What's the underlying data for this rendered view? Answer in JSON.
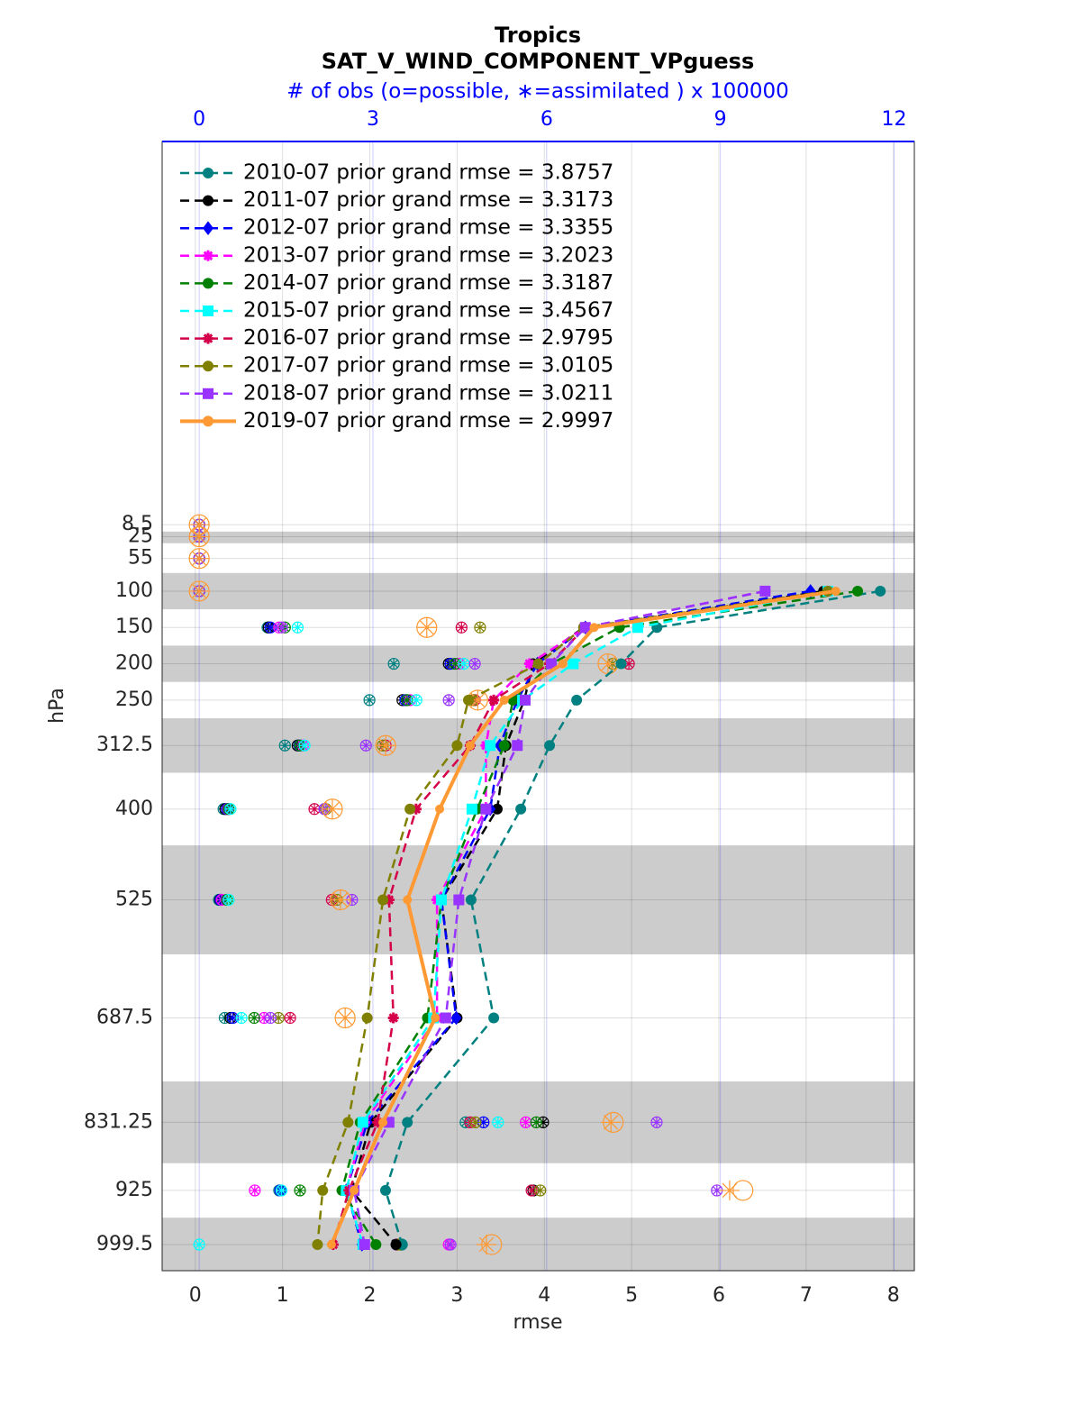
{
  "chart_data": {
    "type": "line",
    "title": "Tropics",
    "subtitle": "SAT_V_WIND_COMPONENT_VPguess",
    "xlabel": "rmse",
    "ylabel": "hPa",
    "x2label": "# of obs (o=possible, ∗=assimilated ) x 100000",
    "xlim": [
      -0.38,
      8.24
    ],
    "xticks": [
      0,
      1,
      2,
      3,
      4,
      5,
      6,
      7,
      8
    ],
    "x2lim": [
      -0.64,
      12.35
    ],
    "x2ticks": [
      0,
      3,
      6,
      9,
      12
    ],
    "ylim": [
      1035.5,
      -519
    ],
    "yticks": [
      8.5,
      25,
      55,
      100,
      150,
      200,
      250,
      312.5,
      400,
      525,
      687.5,
      831.25,
      925,
      999.5
    ],
    "y": [
      8.5,
      25,
      55,
      100,
      150,
      200,
      250,
      312.5,
      400,
      525,
      687.5,
      831.25,
      925,
      999.5
    ],
    "shaded_bands": [
      [
        18,
        34
      ],
      [
        75,
        125
      ],
      [
        175,
        225
      ],
      [
        275,
        350
      ],
      [
        450,
        600
      ],
      [
        775,
        887.5
      ],
      [
        962.5,
        1035.5
      ]
    ],
    "grid": true,
    "legend_position": "upper left",
    "series": [
      {
        "name": "2010-07 prior grand rmse = 3.8757",
        "color": "#008080",
        "marker": "circle",
        "line_style": "dashed",
        "values": [
          null,
          null,
          null,
          7.85,
          5.29,
          4.88,
          4.37,
          4.06,
          3.73,
          3.16,
          3.42,
          2.43,
          2.18,
          2.37
        ],
        "obs_possible": [
          0,
          0,
          0,
          0,
          1.18,
          3.36,
          2.94,
          1.48,
          0.42,
          0.34,
          0.44,
          4.6,
          1.38,
          3.5
        ],
        "obs_assimilated": [
          0,
          0,
          0,
          0,
          1.18,
          3.36,
          2.94,
          1.48,
          0.42,
          0.34,
          0.44,
          4.6,
          1.38,
          3.5
        ]
      },
      {
        "name": "2011-07 prior grand rmse = 3.3173",
        "color": "#000000",
        "marker": "hexagon",
        "line_style": "dashed",
        "values": [
          null,
          null,
          null,
          7.2,
          4.45,
          3.87,
          3.77,
          3.56,
          3.46,
          2.82,
          3.0,
          2.01,
          1.79,
          2.3
        ],
        "obs_possible": [
          0,
          0,
          0,
          0,
          1.2,
          4.31,
          3.51,
          1.7,
          0.45,
          0.36,
          0.54,
          5.94,
          5.77,
          3.41
        ],
        "obs_assimilated": [
          0,
          0,
          0,
          0,
          1.2,
          4.31,
          3.51,
          1.7,
          0.45,
          0.36,
          0.54,
          5.94,
          5.77,
          3.41
        ]
      },
      {
        "name": "2012-07 prior grand rmse = 3.3355",
        "color": "#0000ff",
        "marker": "diamond",
        "line_style": "dashed",
        "values": [
          null,
          null,
          null,
          7.05,
          4.47,
          3.92,
          3.69,
          3.49,
          3.38,
          2.82,
          2.99,
          1.97,
          1.73,
          1.91
        ],
        "obs_possible": [
          0,
          0,
          0,
          0,
          1.23,
          4.34,
          3.56,
          1.73,
          0.48,
          0.37,
          0.58,
          4.91,
          1.4,
          3.41
        ],
        "obs_assimilated": [
          0,
          0,
          0,
          0,
          1.23,
          4.34,
          3.56,
          1.73,
          0.48,
          0.37,
          0.58,
          4.91,
          1.4,
          3.41
        ]
      },
      {
        "name": "2013-07 prior grand rmse = 3.2023",
        "color": "#ff00ff",
        "marker": "asterisk",
        "line_style": "dashed",
        "values": [
          null,
          null,
          null,
          6.53,
          4.47,
          3.83,
          3.42,
          3.33,
          3.33,
          2.77,
          2.77,
          1.94,
          1.73,
          1.94
        ],
        "obs_possible": [
          0,
          0,
          0,
          0,
          1.38,
          4.49,
          3.64,
          1.79,
          0.5,
          0.39,
          1.12,
          5.64,
          0.96,
          4.31
        ],
        "obs_assimilated": [
          0,
          0,
          0,
          0,
          1.38,
          4.49,
          3.64,
          1.79,
          0.5,
          0.39,
          1.12,
          5.64,
          0.96,
          4.31
        ]
      },
      {
        "name": "2014-07 prior grand rmse = 3.3187",
        "color": "#008000",
        "marker": "hexagon",
        "line_style": "dashed",
        "values": [
          null,
          null,
          null,
          7.59,
          4.86,
          4.08,
          3.64,
          3.54,
          3.23,
          2.82,
          2.66,
          1.89,
          1.68,
          2.07
        ],
        "obs_possible": [
          0,
          0,
          0,
          0,
          1.48,
          4.42,
          3.59,
          1.74,
          0.51,
          0.48,
          0.95,
          5.82,
          1.74,
          3.47
        ],
        "obs_assimilated": [
          0,
          0,
          0,
          0,
          1.48,
          4.42,
          3.59,
          1.74,
          0.51,
          0.48,
          0.95,
          5.82,
          1.74,
          3.47
        ]
      },
      {
        "name": "2015-07 prior grand rmse = 3.4567",
        "color": "#00ffff",
        "marker": "square",
        "line_style": "dashed",
        "values": [
          null,
          null,
          null,
          7.25,
          5.07,
          4.33,
          3.75,
          3.38,
          3.17,
          2.82,
          2.73,
          1.92,
          1.73,
          1.92
        ],
        "obs_possible": [
          0,
          0,
          0,
          0,
          1.7,
          4.57,
          3.75,
          1.82,
          0.54,
          0.51,
          0.73,
          5.16,
          1.42,
          0
        ],
        "obs_assimilated": [
          0,
          0,
          0,
          0,
          1.7,
          4.57,
          3.75,
          1.82,
          0.54,
          0.51,
          0.73,
          5.16,
          1.42,
          0
        ]
      },
      {
        "name": "2016-07 prior grand rmse = 2.9795",
        "color": "#d4004a",
        "marker": "asterisk",
        "line_style": "dashed",
        "values": [
          null,
          null,
          null,
          7.25,
          4.47,
          4.06,
          3.42,
          3.15,
          2.53,
          2.22,
          2.27,
          2.09,
          1.76,
          1.58
        ],
        "obs_possible": [
          0,
          0,
          0,
          0,
          4.53,
          7.42,
          4.76,
          3.22,
          1.99,
          2.29,
          1.57,
          4.68,
          5.74,
          3.42
        ],
        "obs_assimilated": [
          0,
          0,
          0,
          0,
          4.53,
          7.42,
          4.76,
          3.22,
          1.99,
          2.29,
          1.57,
          4.68,
          5.74,
          3.42
        ]
      },
      {
        "name": "2017-07 prior grand rmse = 3.0105",
        "color": "#808000",
        "marker": "circle",
        "line_style": "dashed",
        "values": [
          null,
          null,
          null,
          7.25,
          4.45,
          3.93,
          3.13,
          3.0,
          2.46,
          2.15,
          1.97,
          1.75,
          1.46,
          1.4
        ],
        "obs_possible": [
          0,
          0,
          0,
          0,
          4.85,
          7.14,
          4.73,
          3.17,
          2.19,
          2.38,
          1.37,
          4.77,
          5.89,
          3.44
        ],
        "obs_assimilated": [
          0,
          0,
          0,
          0,
          4.85,
          7.14,
          4.73,
          3.17,
          2.19,
          2.38,
          1.37,
          4.77,
          5.89,
          3.44
        ]
      },
      {
        "name": "2018-07 prior grand rmse = 3.0211",
        "color": "#9933ff",
        "marker": "square",
        "line_style": "dashed",
        "values": [
          null,
          null,
          null,
          6.53,
          4.47,
          4.08,
          3.78,
          3.69,
          3.33,
          3.02,
          2.87,
          2.22,
          1.82,
          1.94
        ],
        "obs_possible": [
          0,
          0,
          0,
          0,
          1.43,
          4.76,
          4.31,
          2.88,
          2.16,
          2.64,
          1.23,
          7.9,
          8.94,
          4.34
        ],
        "obs_assimilated": [
          0,
          0,
          0,
          0,
          1.43,
          4.76,
          4.31,
          2.88,
          2.16,
          2.64,
          1.23,
          7.9,
          8.94,
          4.34
        ]
      },
      {
        "name": "2019-07 prior grand rmse = 2.9997",
        "color": "#ff9933",
        "marker": "circle",
        "line_style": "solid",
        "values": [
          null,
          null,
          null,
          7.34,
          4.57,
          4.21,
          3.54,
          3.15,
          2.8,
          2.43,
          2.75,
          2.15,
          1.82,
          1.56
        ],
        "obs_possible": [
          0,
          0,
          0,
          0,
          3.93,
          7.06,
          4.81,
          3.22,
          2.3,
          2.44,
          2.52,
          7.15,
          9.39,
          5.05
        ],
        "obs_assimilated": [
          0,
          0,
          0,
          0,
          3.93,
          7.06,
          4.81,
          3.22,
          2.3,
          2.44,
          2.52,
          7.11,
          9.16,
          4.96
        ]
      }
    ]
  }
}
